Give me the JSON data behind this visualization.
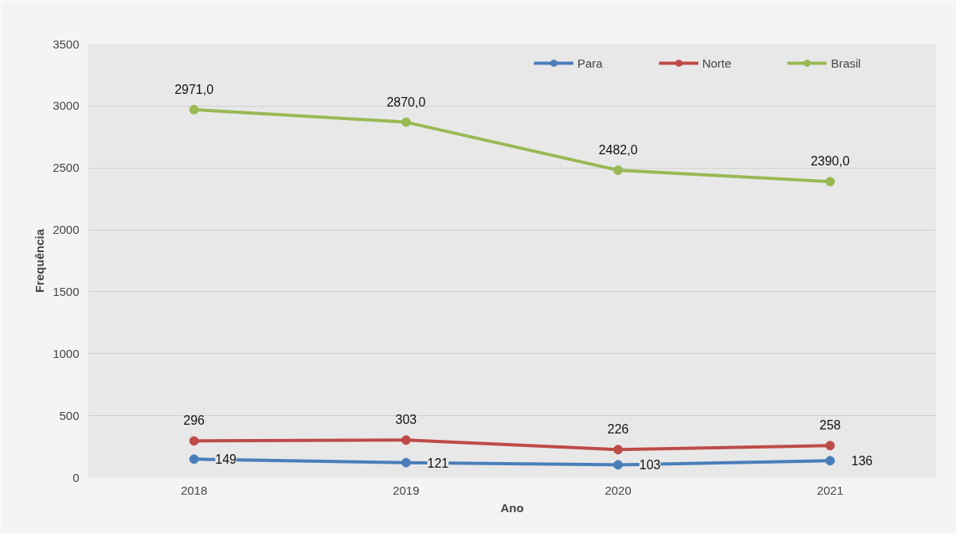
{
  "chart_data": {
    "type": "line",
    "xlabel": "Ano",
    "ylabel": "Frequência",
    "categories": [
      "2018",
      "2019",
      "2020",
      "2021"
    ],
    "ylim": [
      0,
      3500
    ],
    "yticks": [
      0,
      500,
      1000,
      1500,
      2000,
      2500,
      3000,
      3500
    ],
    "grid": "y",
    "legend": "top right",
    "marker": "circle",
    "line_style": "solid",
    "series": [
      {
        "name": "Para",
        "color": "#4a7ebb",
        "values": [
          149,
          121,
          103,
          136
        ],
        "value_labels": [
          "149",
          "121",
          "103",
          "136"
        ]
      },
      {
        "name": "Norte",
        "color": "#be4b48",
        "values": [
          296,
          303,
          226,
          258
        ],
        "value_labels": [
          "296",
          "303",
          "226",
          "258"
        ]
      },
      {
        "name": "Brasil",
        "color": "#98b954",
        "values": [
          2971,
          2870,
          2482,
          2390
        ],
        "value_labels": [
          "2971,0",
          "2870,0",
          "2482,0",
          "2390,0"
        ]
      }
    ]
  }
}
